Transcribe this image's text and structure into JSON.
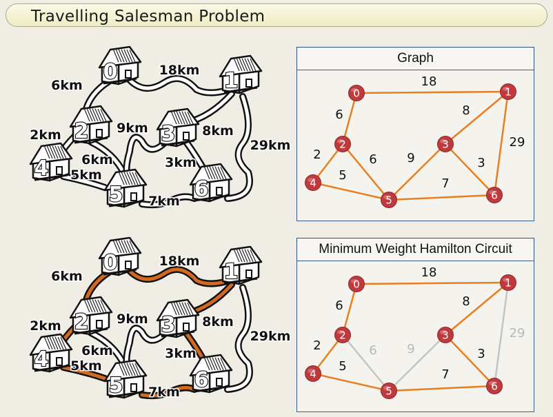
{
  "title": "Travelling Salesman Problem",
  "colors": {
    "edge": "#e87e1e",
    "node": "#c0393d",
    "unused_edge": "#c4c4c4",
    "road_highlight": "#d2691e"
  },
  "panels": {
    "graph": {
      "header": "Graph"
    },
    "circuit": {
      "header": "Minimum Weight Hamilton Circuit"
    }
  },
  "nodes": [
    "0",
    "1",
    "2",
    "3",
    "4",
    "5",
    "6"
  ],
  "edges": [
    {
      "from": "0",
      "to": "1",
      "weight": "18",
      "in_circuit": true
    },
    {
      "from": "0",
      "to": "2",
      "weight": "6",
      "in_circuit": true
    },
    {
      "from": "1",
      "to": "3",
      "weight": "8",
      "in_circuit": true
    },
    {
      "from": "1",
      "to": "6",
      "weight": "29",
      "in_circuit": false
    },
    {
      "from": "2",
      "to": "4",
      "weight": "2",
      "in_circuit": true
    },
    {
      "from": "2",
      "to": "5",
      "weight": "6",
      "in_circuit": false
    },
    {
      "from": "3",
      "to": "5",
      "weight": "9",
      "in_circuit": false
    },
    {
      "from": "3",
      "to": "6",
      "weight": "3",
      "in_circuit": true
    },
    {
      "from": "4",
      "to": "5",
      "weight": "5",
      "in_circuit": true
    },
    {
      "from": "5",
      "to": "6",
      "weight": "7",
      "in_circuit": true
    }
  ],
  "map_labels": {
    "e01": "18km",
    "e02": "6km",
    "e13": "8km",
    "e16": "29km",
    "e24": "2km",
    "e25": "6km",
    "e35": "9km",
    "e36": "3km",
    "e45": "5km",
    "e56": "7km"
  }
}
